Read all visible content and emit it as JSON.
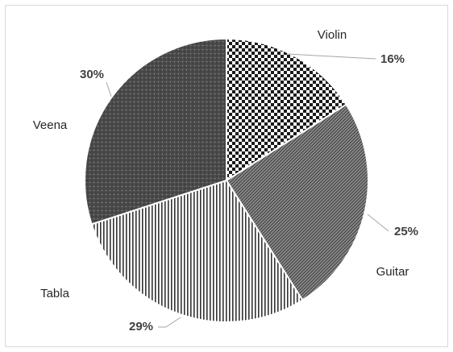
{
  "chart_data": {
    "type": "pie",
    "title": "",
    "slices": [
      {
        "label": "Violin",
        "value": 16,
        "value_label": "16%",
        "pattern": "checker"
      },
      {
        "label": "Guitar",
        "value": 25,
        "value_label": "25%",
        "pattern": "diagonal-hatch"
      },
      {
        "label": "Tabla",
        "value": 29,
        "value_label": "29%",
        "pattern": "vertical-lines"
      },
      {
        "label": "Veena",
        "value": 30,
        "value_label": "30%",
        "pattern": "dark-dotted"
      }
    ],
    "start_angle_deg": 0,
    "direction": "clockwise",
    "legend": "none",
    "colors": {
      "border": "#d9d9d9",
      "slice_outline": "#ffffff",
      "text": "#262626",
      "leader": "#a6a6a6"
    }
  }
}
